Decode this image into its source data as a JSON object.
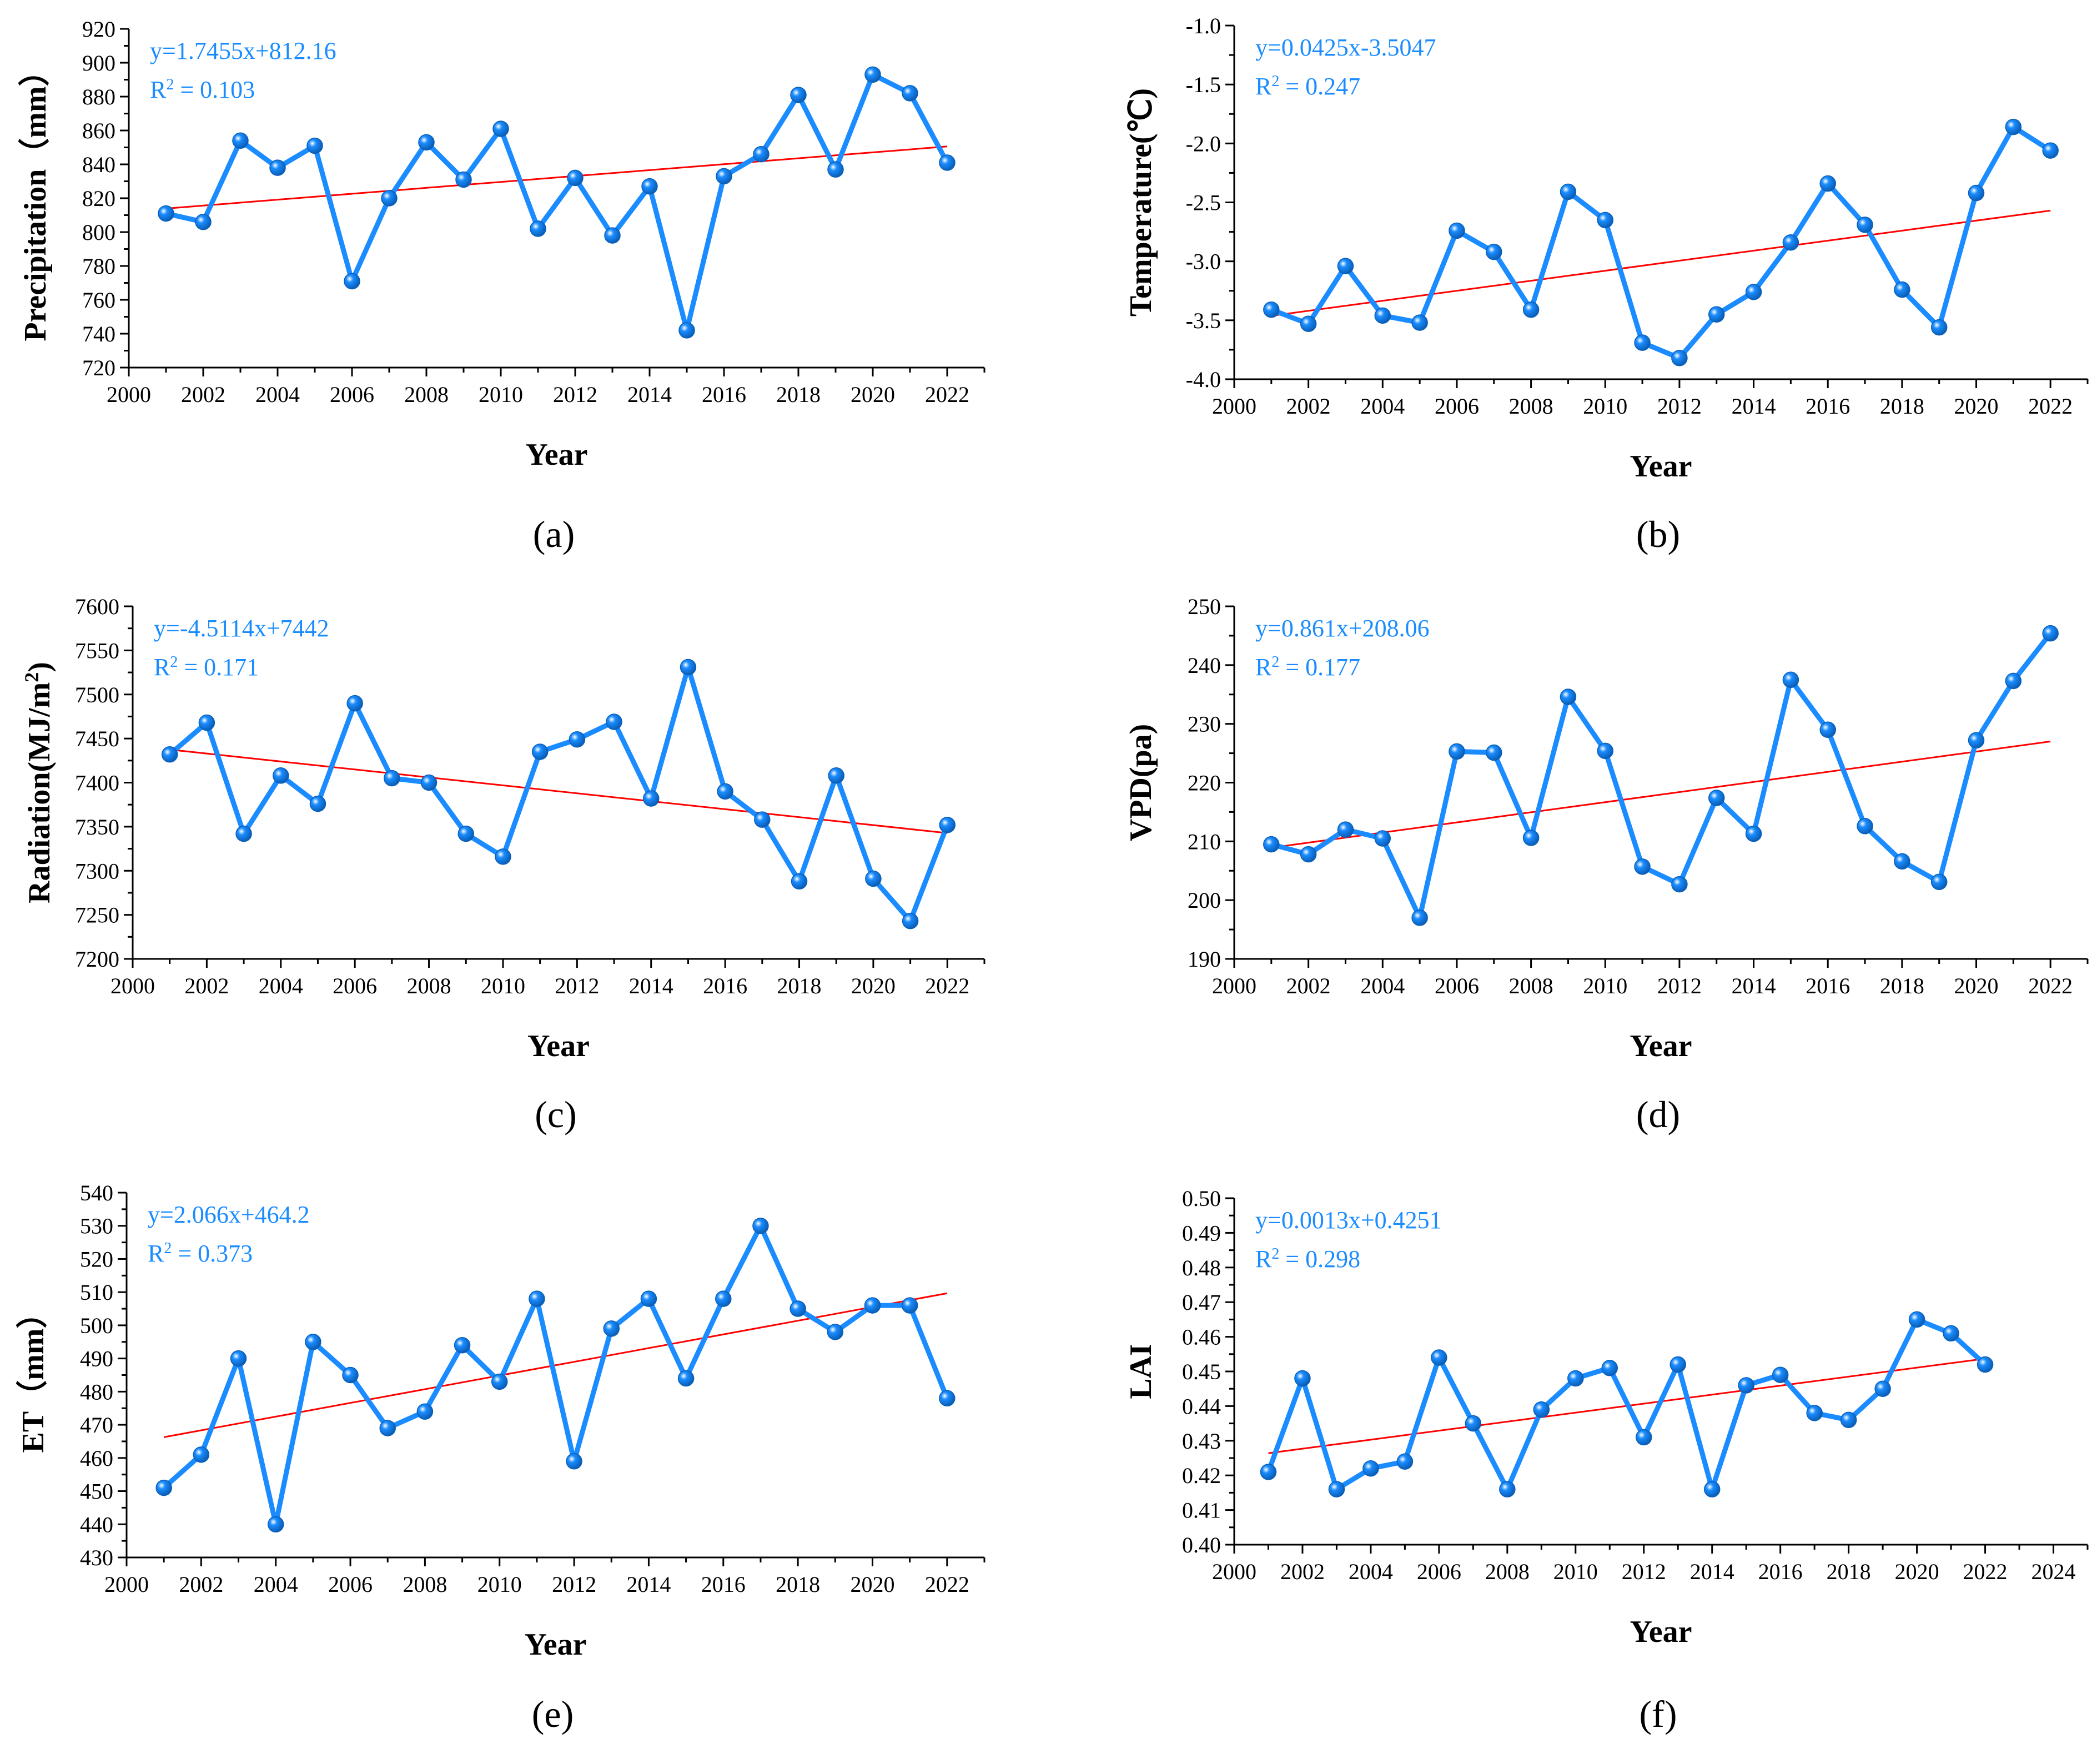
{
  "chart_data": [
    {
      "type": "line",
      "panel_label": "(a)",
      "xlabel": "Year",
      "ylabel": "Precipitation（mm）",
      "xlim": [
        2000,
        2023
      ],
      "ylim": [
        720,
        920
      ],
      "x_ticks": [
        2000,
        2002,
        2004,
        2006,
        2008,
        2010,
        2012,
        2014,
        2016,
        2018,
        2020,
        2022
      ],
      "y_ticks": [
        720,
        740,
        760,
        780,
        800,
        820,
        840,
        860,
        880,
        900,
        920
      ],
      "y_tick_labels": [
        "720",
        "740",
        "760",
        "780",
        "800",
        "820",
        "840",
        "860",
        "880",
        "900",
        "920"
      ],
      "equation": "y=1.7455x+812.16",
      "r2_prefix": "R",
      "r2_sup": "2",
      "r2_value": " = 0.103",
      "trend": {
        "slope": 1.7455,
        "intercept": 812.16
      },
      "years": [
        2001,
        2002,
        2003,
        2004,
        2005,
        2006,
        2007,
        2008,
        2009,
        2010,
        2011,
        2012,
        2013,
        2014,
        2015,
        2016,
        2017,
        2018,
        2019,
        2020,
        2021,
        2022
      ],
      "values": [
        811,
        806,
        854,
        838,
        851,
        771,
        820,
        853,
        831,
        861,
        802,
        832,
        798,
        827,
        742,
        833,
        846,
        881,
        837,
        893,
        882,
        841
      ]
    },
    {
      "type": "line",
      "panel_label": "(b)",
      "xlabel": "Year",
      "ylabel": "Temperature(℃)",
      "xlim": [
        2000,
        2023
      ],
      "ylim": [
        -4.0,
        -1.0
      ],
      "x_ticks": [
        2000,
        2002,
        2004,
        2006,
        2008,
        2010,
        2012,
        2014,
        2016,
        2018,
        2020,
        2022
      ],
      "y_ticks": [
        -4.0,
        -3.5,
        -3.0,
        -2.5,
        -2.0,
        -1.5,
        -1.0
      ],
      "y_tick_labels": [
        "-4.0",
        "-3.5",
        "-3.0",
        "-2.5",
        "-2.0",
        "-1.5",
        "-1.0"
      ],
      "equation": "y=0.0425x-3.5047",
      "r2_prefix": "R",
      "r2_sup": "2",
      "r2_value": " = 0.247",
      "trend": {
        "slope": 0.0425,
        "intercept": -3.5047
      },
      "years": [
        2001,
        2002,
        2003,
        2004,
        2005,
        2006,
        2007,
        2008,
        2009,
        2010,
        2011,
        2012,
        2013,
        2014,
        2015,
        2016,
        2017,
        2018,
        2019,
        2020,
        2021,
        2022
      ],
      "values": [
        -3.41,
        -3.53,
        -3.04,
        -3.46,
        -3.52,
        -2.74,
        -2.92,
        -3.41,
        -2.41,
        -2.65,
        -3.69,
        -3.82,
        -3.45,
        -3.26,
        -2.84,
        -2.34,
        -2.69,
        -3.24,
        -3.56,
        -2.42,
        -1.86,
        -2.06
      ]
    },
    {
      "type": "line",
      "panel_label": "(c)",
      "xlabel": "Year",
      "ylabel": "Radiation(MJ/m",
      "ylabel_sup": "2",
      "ylabel_end": ")",
      "xlim": [
        2000,
        2023
      ],
      "ylim": [
        7200,
        7600
      ],
      "x_ticks": [
        2000,
        2002,
        2004,
        2006,
        2008,
        2010,
        2012,
        2014,
        2016,
        2018,
        2020,
        2022
      ],
      "y_ticks": [
        7200,
        7250,
        7300,
        7350,
        7400,
        7450,
        7500,
        7550,
        7600
      ],
      "y_tick_labels": [
        "7200",
        "7250",
        "7300",
        "7350",
        "7400",
        "7450",
        "7500",
        "7550",
        "7600"
      ],
      "equation": "y=-4.5114x+7442",
      "r2_prefix": "R",
      "r2_sup": "2",
      "r2_value": " = 0.171",
      "trend": {
        "slope": -4.5114,
        "intercept": 7442
      },
      "years": [
        2001,
        2002,
        2003,
        2004,
        2005,
        2006,
        2007,
        2008,
        2009,
        2010,
        2011,
        2012,
        2013,
        2014,
        2015,
        2016,
        2017,
        2018,
        2019,
        2020,
        2021,
        2022
      ],
      "values": [
        7432,
        7468,
        7342,
        7408,
        7376,
        7490,
        7405,
        7400,
        7342,
        7316,
        7435,
        7449,
        7469,
        7382,
        7531,
        7390,
        7358,
        7288,
        7408,
        7291,
        7243,
        7352
      ]
    },
    {
      "type": "line",
      "panel_label": "(d)",
      "xlabel": "Year",
      "ylabel": "VPD(pa)",
      "xlim": [
        2000,
        2023
      ],
      "ylim": [
        190,
        250
      ],
      "x_ticks": [
        2000,
        2002,
        2004,
        2006,
        2008,
        2010,
        2012,
        2014,
        2016,
        2018,
        2020,
        2022
      ],
      "y_ticks": [
        190,
        200,
        210,
        220,
        230,
        240,
        250
      ],
      "y_tick_labels": [
        "190",
        "200",
        "210",
        "220",
        "230",
        "240",
        "250"
      ],
      "equation": "y=0.861x+208.06",
      "r2_prefix": "R",
      "r2_sup": "2",
      "r2_value": " = 0.177",
      "trend": {
        "slope": 0.861,
        "intercept": 208.06
      },
      "years": [
        2001,
        2002,
        2003,
        2004,
        2005,
        2006,
        2007,
        2008,
        2009,
        2010,
        2011,
        2012,
        2013,
        2014,
        2015,
        2016,
        2017,
        2018,
        2019,
        2020,
        2021,
        2022
      ],
      "values": [
        209.5,
        207.8,
        212.0,
        210.5,
        197.0,
        225.3,
        225.1,
        210.6,
        234.6,
        225.4,
        205.7,
        202.7,
        217.4,
        211.3,
        237.5,
        229.0,
        212.6,
        206.6,
        203.1,
        227.2,
        237.3,
        245.4
      ]
    },
    {
      "type": "line",
      "panel_label": "(e)",
      "xlabel": "Year",
      "ylabel": "ET（mm）",
      "xlim": [
        2000,
        2023
      ],
      "ylim": [
        430,
        540
      ],
      "x_ticks": [
        2000,
        2002,
        2004,
        2006,
        2008,
        2010,
        2012,
        2014,
        2016,
        2018,
        2020,
        2022
      ],
      "y_ticks": [
        430,
        440,
        450,
        460,
        470,
        480,
        490,
        500,
        510,
        520,
        530,
        540
      ],
      "y_tick_labels": [
        "430",
        "440",
        "450",
        "460",
        "470",
        "480",
        "490",
        "500",
        "510",
        "520",
        "530",
        "540"
      ],
      "equation": "y=2.066x+464.2",
      "r2_prefix": "R",
      "r2_sup": "2",
      "r2_value": " = 0.373",
      "trend": {
        "slope": 2.066,
        "intercept": 464.2
      },
      "years": [
        2001,
        2002,
        2003,
        2004,
        2005,
        2006,
        2007,
        2008,
        2009,
        2010,
        2011,
        2012,
        2013,
        2014,
        2015,
        2016,
        2017,
        2018,
        2019,
        2020,
        2021,
        2022
      ],
      "values": [
        451,
        461,
        490,
        440,
        495,
        485,
        469,
        474,
        494,
        483,
        508,
        459,
        499,
        508,
        484,
        508,
        530,
        505,
        498,
        506,
        506,
        478
      ]
    },
    {
      "type": "line",
      "panel_label": "(f)",
      "xlabel": "Year",
      "ylabel": "LAI",
      "xlim": [
        2000,
        2025
      ],
      "ylim": [
        0.4,
        0.5
      ],
      "x_ticks": [
        2000,
        2002,
        2004,
        2006,
        2008,
        2010,
        2012,
        2014,
        2016,
        2018,
        2020,
        2022,
        2024
      ],
      "y_ticks": [
        0.4,
        0.41,
        0.42,
        0.43,
        0.44,
        0.45,
        0.46,
        0.47,
        0.48,
        0.49,
        0.5
      ],
      "y_tick_labels": [
        "0.40",
        "0.41",
        "0.42",
        "0.43",
        "0.44",
        "0.45",
        "0.46",
        "0.47",
        "0.48",
        "0.49",
        "0.50"
      ],
      "equation": "y=0.0013x+0.4251",
      "r2_prefix": "R",
      "r2_sup": "2",
      "r2_value": " = 0.298",
      "trend": {
        "slope": 0.0013,
        "intercept": 0.4251
      },
      "years": [
        2001,
        2002,
        2003,
        2004,
        2005,
        2006,
        2007,
        2008,
        2009,
        2010,
        2011,
        2012,
        2013,
        2014,
        2015,
        2016,
        2017,
        2018,
        2019,
        2020,
        2021,
        2022
      ],
      "values": [
        0.421,
        0.448,
        0.416,
        0.422,
        0.424,
        0.454,
        0.435,
        0.416,
        0.439,
        0.448,
        0.451,
        0.431,
        0.452,
        0.416,
        0.446,
        0.449,
        0.438,
        0.436,
        0.445,
        0.465,
        0.461,
        0.452
      ]
    }
  ],
  "colors": {
    "series": "#1a8cff",
    "marker_fill": "#1a8cff",
    "trend": "#ff0000",
    "axis": "#000000",
    "text_accent": "#1a8cff"
  }
}
